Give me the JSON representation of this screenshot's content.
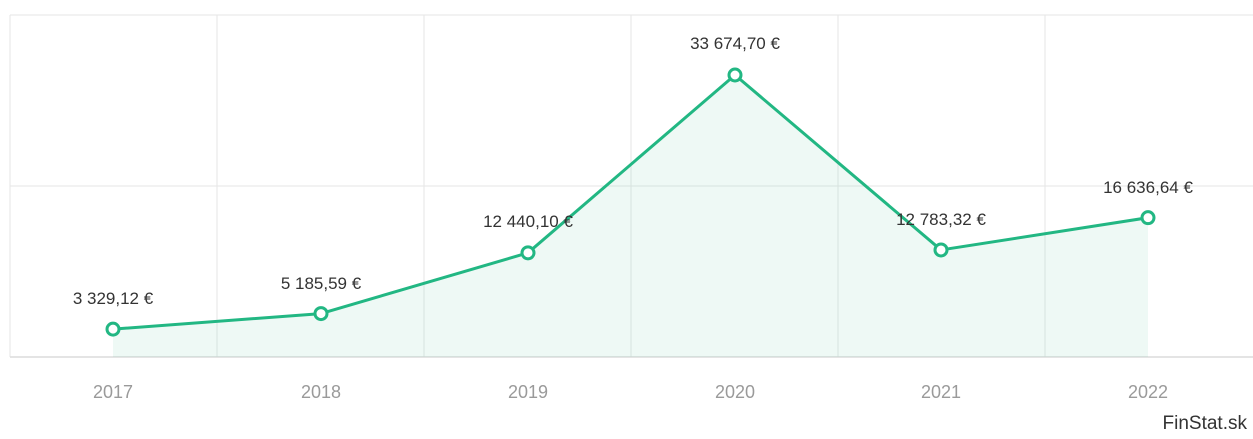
{
  "chart_data": {
    "type": "area",
    "categories": [
      "2017",
      "2018",
      "2019",
      "2020",
      "2021",
      "2022"
    ],
    "values": [
      3329.12,
      5185.59,
      12440.1,
      33674.7,
      12783.32,
      16636.64
    ],
    "value_labels": [
      "3 329,12 €",
      "5 185,59 €",
      "12 440,10 €",
      "33 674,70 €",
      "12 783,32 €",
      "16 636,64 €"
    ],
    "ylim": [
      0,
      40000
    ],
    "grid": true,
    "legend": "none",
    "colors": {
      "line": "#22b783",
      "area": "#22b783",
      "grid": "#e6e6e6",
      "tick_text": "#9a9a9a",
      "label_text": "#333333"
    }
  },
  "credit": "FinStat.sk"
}
